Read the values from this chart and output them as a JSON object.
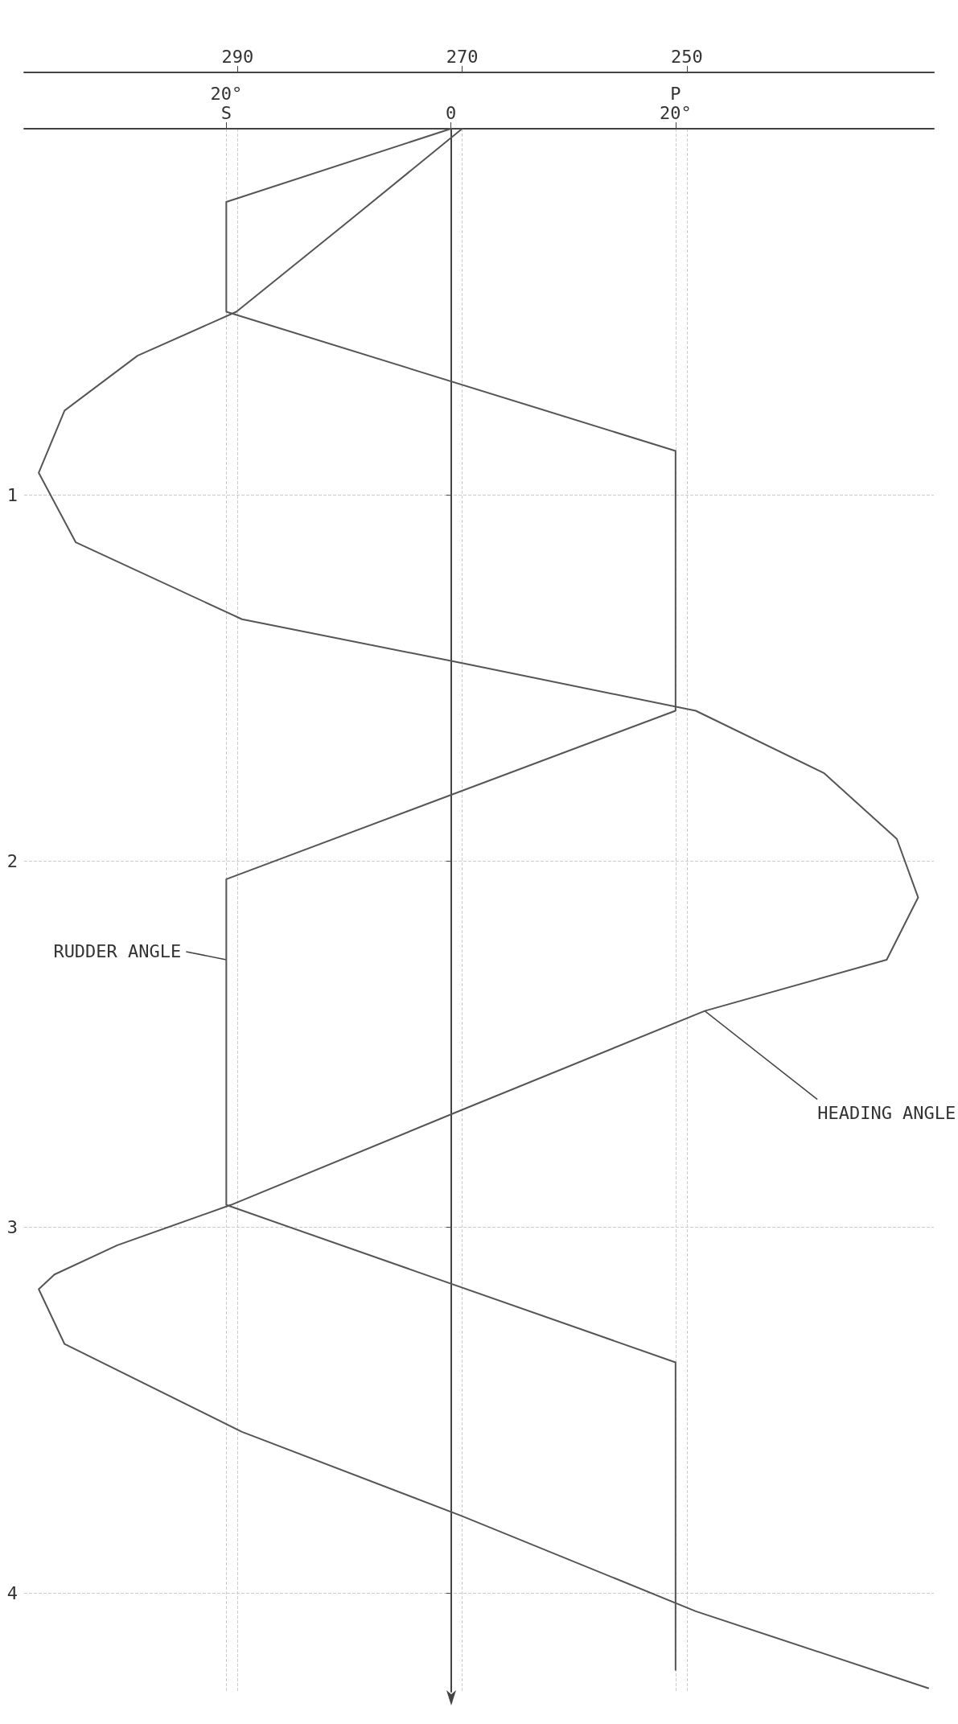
{
  "chart_data": {
    "type": "line",
    "series": [
      {
        "color": "#555555",
        "x": [
          270,
          280.4,
          290.1,
          298.9,
          305.4,
          307.7,
          304.4,
          289.6,
          270,
          249.2,
          237.8,
          231.3,
          229.4,
          232.2,
          248.4,
          270,
          290.6,
          300.7,
          306.3,
          307.7,
          305.4,
          289.6,
          270,
          249.2,
          228.5
        ],
        "values": [
          0,
          0.26,
          0.5,
          0.62,
          0.77,
          0.94,
          1.13,
          1.34,
          1.46,
          1.59,
          1.76,
          1.94,
          2.1,
          2.27,
          2.41,
          2.68,
          2.94,
          3.05,
          3.13,
          3.17,
          3.32,
          3.56,
          3.79,
          4.05,
          4.26
        ]
      },
      {
        "color": "#555555",
        "axis": "x2",
        "x": [
          0,
          20,
          20,
          -20,
          -20,
          20,
          20,
          -20,
          -20
        ],
        "values": [
          0,
          0.2,
          0.5,
          0.88,
          1.59,
          2.05,
          2.94,
          3.37,
          4.21
        ]
      }
    ],
    "xlim": [
      309,
      228
    ],
    "xticks": [
      290,
      270,
      250
    ],
    "x2lim": [
      38,
      -43
    ],
    "x2ticks": [
      {
        "value": 20,
        "label": "20°\nS"
      },
      {
        "value": 0,
        "label": "0"
      },
      {
        "value": -20,
        "label": "P\n20°"
      }
    ],
    "ylim": [
      4.27,
      0
    ],
    "yticks": [
      {
        "value": 0,
        "label": null
      },
      1,
      2,
      3,
      4
    ],
    "annotations": [
      {
        "text": "RUDDER ANGLE",
        "x": 291,
        "y": 2.27
      },
      {
        "text": "HEADING ANGLE",
        "x": 248.4,
        "y": 2.41
      }
    ],
    "grid": true,
    "marker": "none",
    "line_style": "solid"
  }
}
